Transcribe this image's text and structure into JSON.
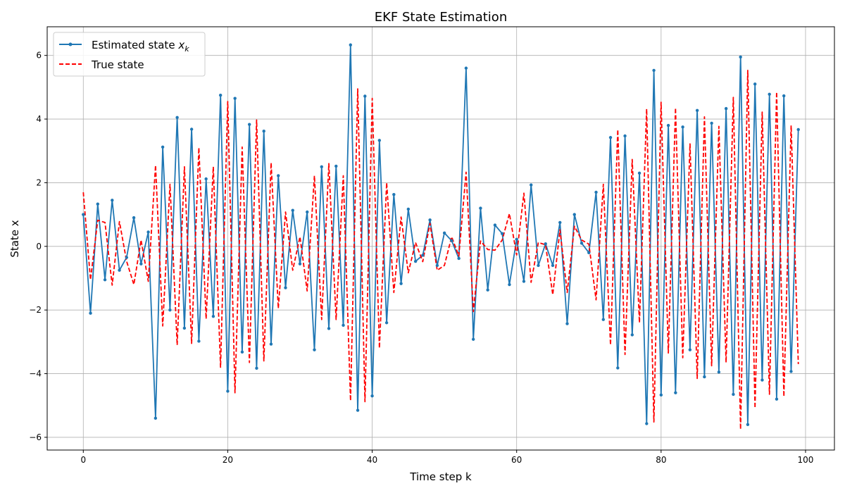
{
  "chart_data": {
    "type": "line",
    "title": "EKF State Estimation",
    "xlabel": "Time step k",
    "ylabel": "State x",
    "xlim": [
      -5,
      104
    ],
    "ylim": [
      -6.4,
      6.9
    ],
    "xticks": [
      0,
      20,
      40,
      60,
      80,
      100
    ],
    "yticks": [
      -6,
      -4,
      -2,
      0,
      2,
      4,
      6
    ],
    "grid": true,
    "legend_position": "upper-left",
    "series": [
      {
        "name": "Estimated state x_k",
        "legend_main": "Estimated state ",
        "legend_sub": "k",
        "legend_var": "x",
        "color": "#1f77b4",
        "style": "solid",
        "marker": "dot",
        "x": [
          0,
          1,
          2,
          3,
          4,
          5,
          6,
          7,
          8,
          9,
          10,
          11,
          12,
          13,
          14,
          15,
          16,
          17,
          18,
          19,
          20,
          21,
          22,
          23,
          24,
          25,
          26,
          27,
          28,
          29,
          30,
          31,
          32,
          33,
          34,
          35,
          36,
          37,
          38,
          39,
          40,
          41,
          42,
          43,
          44,
          45,
          46,
          47,
          48,
          49,
          50,
          51,
          52,
          53,
          54,
          55,
          56,
          57,
          58,
          59,
          60,
          61,
          62,
          63,
          64,
          65,
          66,
          67,
          68,
          69,
          70,
          71,
          72,
          73,
          74,
          75,
          76,
          77,
          78,
          79,
          80,
          81,
          82,
          83,
          84,
          85,
          86,
          87,
          88,
          89,
          90,
          91,
          92,
          93,
          94,
          95,
          96,
          97,
          98,
          99
        ],
        "values": [
          1.0,
          -2.1,
          1.33,
          -1.05,
          1.45,
          -0.75,
          -0.35,
          0.9,
          -0.55,
          0.45,
          -5.4,
          3.12,
          -2.0,
          4.05,
          -2.57,
          3.68,
          -2.98,
          2.12,
          -2.2,
          4.75,
          -4.55,
          4.65,
          -3.32,
          3.83,
          -3.83,
          3.62,
          -3.07,
          2.22,
          -1.3,
          1.13,
          -0.55,
          1.08,
          -3.25,
          2.5,
          -2.58,
          2.52,
          -2.48,
          6.33,
          -5.15,
          4.72,
          -4.7,
          3.33,
          -2.4,
          1.63,
          -1.17,
          1.17,
          -0.47,
          -0.28,
          0.83,
          -0.6,
          0.42,
          0.18,
          -0.38,
          5.6,
          -2.92,
          1.2,
          -1.37,
          0.67,
          0.4,
          -1.2,
          0.22,
          -1.1,
          1.93,
          -0.6,
          0.08,
          -0.6,
          0.75,
          -2.43,
          1.0,
          0.1,
          -0.2,
          1.7,
          -2.3,
          3.42,
          -3.82,
          3.47,
          -2.78,
          2.3,
          -5.57,
          5.53,
          -4.67,
          3.8,
          -4.6,
          3.75,
          -3.25,
          4.27,
          -4.1,
          3.87,
          -3.95,
          4.33,
          -4.65,
          5.95,
          -5.6,
          5.1,
          -4.2,
          4.78,
          -4.8,
          4.73,
          -3.93,
          3.67
        ]
      },
      {
        "name": "True state",
        "color": "#ff0000",
        "style": "dashed",
        "x": [
          0,
          1,
          2,
          3,
          4,
          5,
          6,
          7,
          8,
          9,
          10,
          11,
          12,
          13,
          14,
          15,
          16,
          17,
          18,
          19,
          20,
          21,
          22,
          23,
          24,
          25,
          26,
          27,
          28,
          29,
          30,
          31,
          32,
          33,
          34,
          35,
          36,
          37,
          38,
          39,
          40,
          41,
          42,
          43,
          44,
          45,
          46,
          47,
          48,
          49,
          50,
          51,
          52,
          53,
          54,
          55,
          56,
          57,
          58,
          59,
          60,
          61,
          62,
          63,
          64,
          65,
          66,
          67,
          68,
          69,
          70,
          71,
          72,
          73,
          74,
          75,
          76,
          77,
          78,
          79,
          80,
          81,
          82,
          83,
          84,
          85,
          86,
          87,
          88,
          89,
          90,
          91,
          92,
          93,
          94,
          95,
          96,
          97,
          98,
          99
        ],
        "values": [
          1.7,
          -1.05,
          0.82,
          0.75,
          -1.22,
          0.78,
          -0.47,
          -1.2,
          0.2,
          -1.1,
          2.55,
          -2.5,
          1.95,
          -3.1,
          2.5,
          -3.05,
          3.1,
          -2.28,
          2.5,
          -3.8,
          4.55,
          -4.6,
          3.12,
          -3.65,
          3.97,
          -3.6,
          2.63,
          -1.95,
          1.08,
          -0.75,
          0.3,
          -1.4,
          2.22,
          -2.3,
          2.6,
          -2.3,
          2.22,
          -4.85,
          4.95,
          -4.88,
          4.65,
          -3.2,
          2.0,
          -1.45,
          0.92,
          -0.83,
          0.12,
          -0.48,
          0.72,
          -0.75,
          -0.6,
          0.3,
          -0.3,
          2.33,
          -2.05,
          0.17,
          -0.1,
          -0.12,
          0.2,
          1.03,
          -0.27,
          1.67,
          -1.13,
          0.12,
          0.05,
          -1.52,
          0.52,
          -1.45,
          0.63,
          0.2,
          0.07,
          -1.68,
          1.95,
          -3.1,
          3.67,
          -3.4,
          2.73,
          -2.4,
          4.32,
          -5.52,
          4.53,
          -3.35,
          4.35,
          -3.5,
          3.22,
          -4.15,
          4.07,
          -3.75,
          3.77,
          -3.65,
          4.68,
          -5.75,
          5.53,
          -5.08,
          4.22,
          -4.65,
          4.85,
          -4.72,
          3.8,
          -3.7
        ]
      }
    ]
  }
}
